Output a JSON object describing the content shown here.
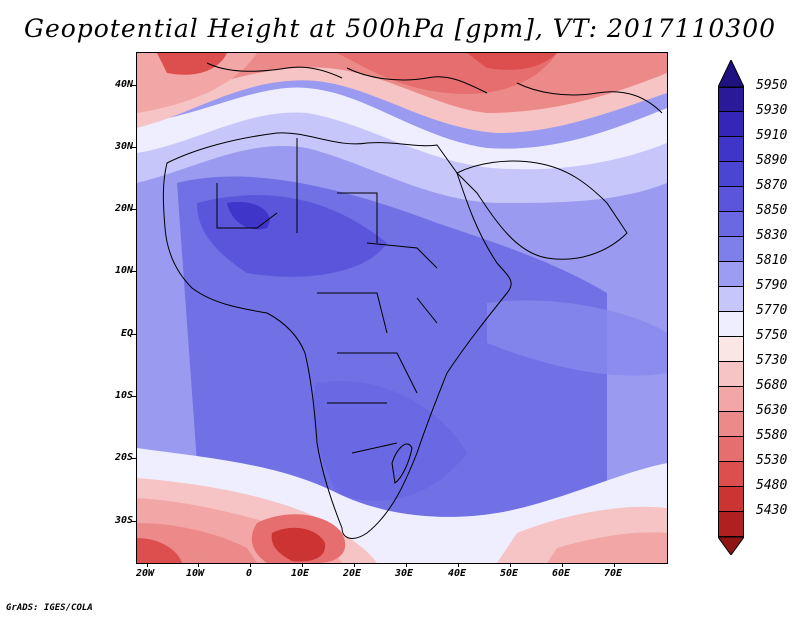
{
  "title": "Geopotential Height at 500hPa [gpm], VT: 2017110300",
  "footer": "GrADS: IGES/COLA",
  "lat_labels": [
    "40N",
    "30N",
    "20N",
    "10N",
    "EQ",
    "10S",
    "20S",
    "30S"
  ],
  "lon_labels": [
    "20W",
    "10W",
    "0",
    "10E",
    "20E",
    "30E",
    "40E",
    "50E",
    "60E",
    "70E"
  ],
  "colorbar": {
    "labels": [
      "5950",
      "5930",
      "5910",
      "5890",
      "5870",
      "5850",
      "5830",
      "5810",
      "5790",
      "5770",
      "5750",
      "5730",
      "5680",
      "5630",
      "5580",
      "5530",
      "5480",
      "5430"
    ],
    "colors": [
      "#2a1a9a",
      "#3525b8",
      "#3f35c8",
      "#4a45d2",
      "#5a55da",
      "#6a68e2",
      "#7f7feb",
      "#9c9cf3",
      "#c6c6fa",
      "#eeeeff",
      "#fbe6e6",
      "#f6c4c4",
      "#f2a6a6",
      "#ec8a8a",
      "#e66e6e",
      "#dd4f4f",
      "#cc3434",
      "#b02020"
    ],
    "top_arrow_color": "#1f1280",
    "bottom_arrow_color": "#8f1515"
  }
}
